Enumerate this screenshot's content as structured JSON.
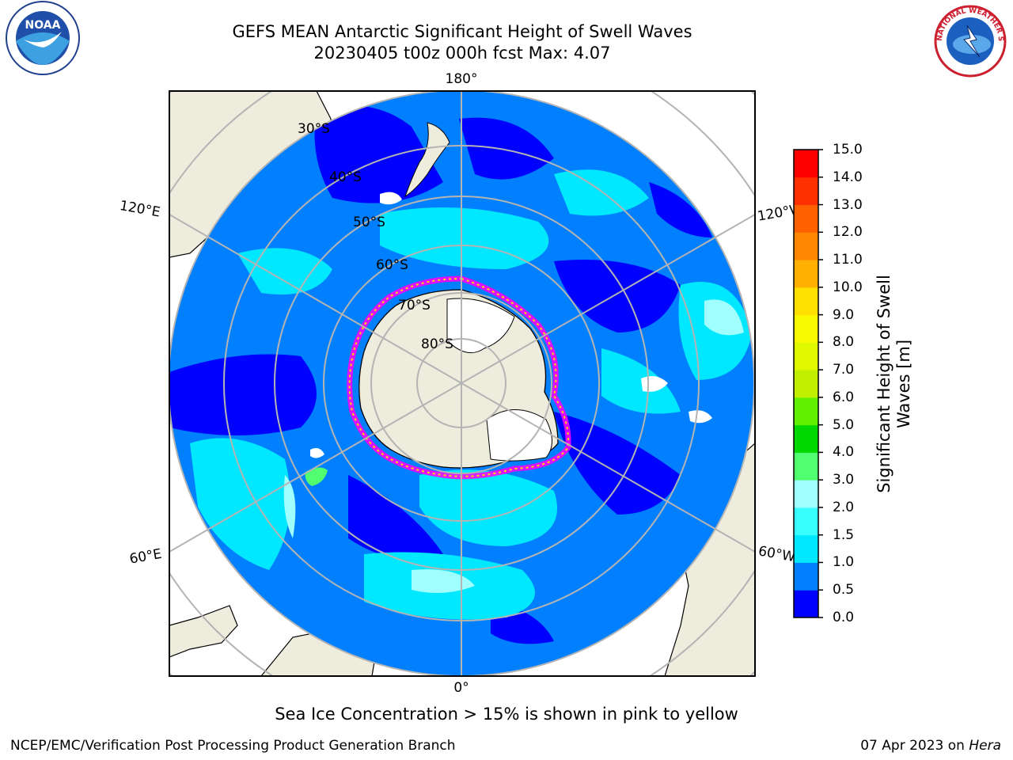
{
  "title": {
    "line1": "GEFS MEAN Antarctic Significant Height of Swell Waves",
    "line2": "20230405 t00z 000h fcst   Max: 4.07"
  },
  "map": {
    "projection": "south-polar-stereographic",
    "longitude_labels": [
      "180°",
      "120°E",
      "120°W",
      "60°E",
      "60°W",
      "0°"
    ],
    "latitude_labels": [
      "30°S",
      "40°S",
      "50°S",
      "60°S",
      "70°S",
      "80°S"
    ],
    "colors": {
      "land": "#eeecdc",
      "ice_edge": [
        "#ff00ff",
        "#ffd700"
      ],
      "grid": "#b4b4b4"
    }
  },
  "colorbar": {
    "label_line1": "Significant Height of Swell",
    "label_line2": "Waves [m]",
    "ticks": [
      "15.0",
      "14.0",
      "13.0",
      "12.0",
      "11.0",
      "10.0",
      "9.0",
      "8.0",
      "7.0",
      "6.0",
      "5.0",
      "4.0",
      "3.0",
      "2.0",
      "1.5",
      "1.0",
      "0.5",
      "0.0"
    ],
    "bins": [
      {
        "range": "0.0-0.5",
        "color": "#0000ff"
      },
      {
        "range": "0.5-1.0",
        "color": "#0080ff"
      },
      {
        "range": "1.0-1.5",
        "color": "#00e8ff"
      },
      {
        "range": "1.5-2.0",
        "color": "#38ffff"
      },
      {
        "range": "2.0-3.0",
        "color": "#a0ffff"
      },
      {
        "range": "3.0-4.0",
        "color": "#50ff70"
      },
      {
        "range": "4.0-5.0",
        "color": "#00d800"
      },
      {
        "range": "5.0-6.0",
        "color": "#60f000"
      },
      {
        "range": "6.0-7.0",
        "color": "#c0f000"
      },
      {
        "range": "7.0-8.0",
        "color": "#e0f800"
      },
      {
        "range": "8.0-9.0",
        "color": "#f8f800"
      },
      {
        "range": "9.0-10.0",
        "color": "#ffe000"
      },
      {
        "range": "10.0-11.0",
        "color": "#ffb000"
      },
      {
        "range": "11.0-12.0",
        "color": "#ff8800"
      },
      {
        "range": "12.0-13.0",
        "color": "#ff6000"
      },
      {
        "range": "13.0-14.0",
        "color": "#ff3000"
      },
      {
        "range": "14.0-15.0",
        "color": "#ff0000"
      }
    ]
  },
  "note": "Sea Ice Concentration > 15% is shown in pink to yellow",
  "footer": {
    "credit": "NCEP/EMC/Verification Post Processing Product Generation Branch",
    "date_prefix": "07 Apr 2023 on ",
    "machine": "Hera"
  },
  "logos": {
    "noaa_text": "NOAA",
    "nws_text": "NATIONAL WEATHER SERVICE"
  }
}
